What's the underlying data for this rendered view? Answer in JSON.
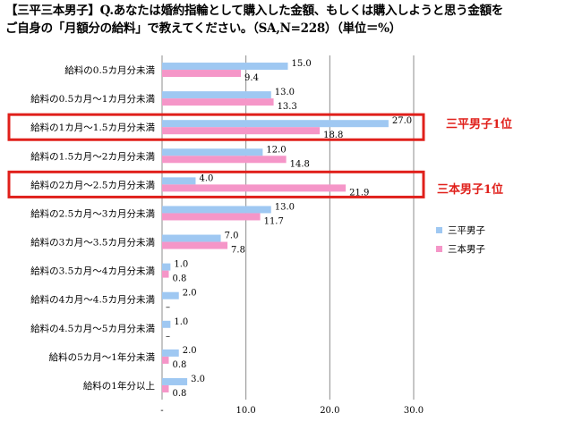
{
  "title": {
    "line1": "【三平三本男子】Q.あなたは婚約指輪として購入した金額、もしくは購入しようと思う金額を",
    "line2": "ご自身の「月額分の給料」で教えてください。（SA,N=228）（単位＝%）"
  },
  "callouts": {
    "sanpei": "三平男子1位",
    "sanbon": "三本男子1位"
  },
  "colors": {
    "sanpei": "#9fc8f2",
    "sanbon": "#f596c8",
    "highlight": "#e0201b",
    "grid": "#8c8c8c"
  },
  "chart_data": {
    "type": "bar",
    "orientation": "horizontal",
    "categories": [
      "給料の0.5カ月分未満",
      "給料の0.5カ月～1カ月分未満",
      "給料の1カ月～1.5カ月分未満",
      "給料の1.5カ月～2カ月分未満",
      "給料の2カ月～2.5カ月分未満",
      "給料の2.5カ月～3カ月分未満",
      "給料の3カ月～3.5カ月分未満",
      "給料の3.5カ月～4カ月分未満",
      "給料の4カ月～4.5カ月分未満",
      "給料の4.5カ月～5カ月分未満",
      "給料の5カ月～1年分未満",
      "給料の1年分以上"
    ],
    "series": [
      {
        "name": "三平男子",
        "values": [
          15.0,
          13.0,
          27.0,
          12.0,
          4.0,
          13.0,
          7.0,
          1.0,
          2.0,
          1.0,
          2.0,
          3.0
        ],
        "labels": [
          "15.0",
          "13.0",
          "27.0",
          "12.0",
          "4.0",
          "13.0",
          "7.0",
          "1.0",
          "2.0",
          "1.0",
          "2.0",
          "3.0"
        ]
      },
      {
        "name": "三本男子",
        "values": [
          9.4,
          13.3,
          18.8,
          14.8,
          21.9,
          11.7,
          7.8,
          0.8,
          0,
          0,
          0.8,
          0.8
        ],
        "labels": [
          "9.4",
          "13.3",
          "18.8",
          "14.8",
          "21.9",
          "11.7",
          "7.8",
          "0.8",
          "–",
          "–",
          "0.8",
          "0.8"
        ]
      }
    ],
    "xlim": [
      0,
      30
    ],
    "xticks": [
      0,
      10,
      20,
      30
    ],
    "xtick_labels": [
      "-",
      "10.0",
      "20.0",
      "30.0"
    ],
    "highlighted_categories": [
      2,
      4
    ],
    "grid": "vertical",
    "legend": "right"
  }
}
